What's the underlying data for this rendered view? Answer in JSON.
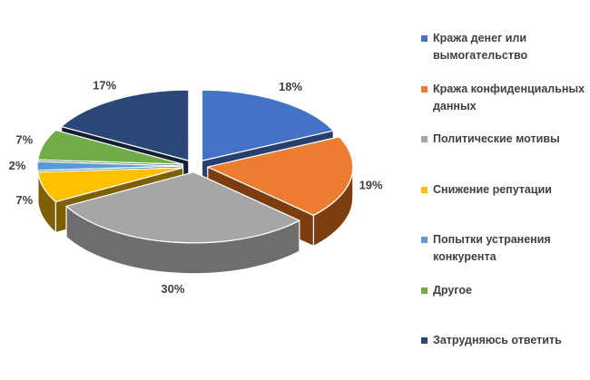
{
  "chart_data": {
    "type": "pie",
    "variant": "3d-exploded",
    "title": "",
    "labels": [
      "Кража денег или вымогательство",
      "Кража конфиденциальных данных",
      "Политические мотивы",
      "Снижение репутации",
      "Попытки устранения конкурента",
      "Другое",
      "Затрудняюсь ответить"
    ],
    "values": [
      18,
      19,
      30,
      7,
      2,
      7,
      17
    ],
    "data_labels": [
      "18%",
      "19%",
      "30%",
      "7%",
      "2%",
      "7%",
      "17%"
    ],
    "colors": [
      "#4472C4",
      "#ED7D31",
      "#A6A6A6",
      "#FFC000",
      "#5B9BD5",
      "#70AD47",
      "#2A4777"
    ],
    "side_colors": [
      "#263F6E",
      "#7C3D10",
      "#6E6E6E",
      "#7E6000",
      "#2F5E8C",
      "#3F6A28",
      "#141F33"
    ],
    "start_angle_deg": 0,
    "direction": "clockwise",
    "legend_position": "right",
    "background": "#FFFFFF",
    "data_label_color": "#404040",
    "legend_text_color": "#404040",
    "slice_border_color": "#FFFFFF"
  }
}
